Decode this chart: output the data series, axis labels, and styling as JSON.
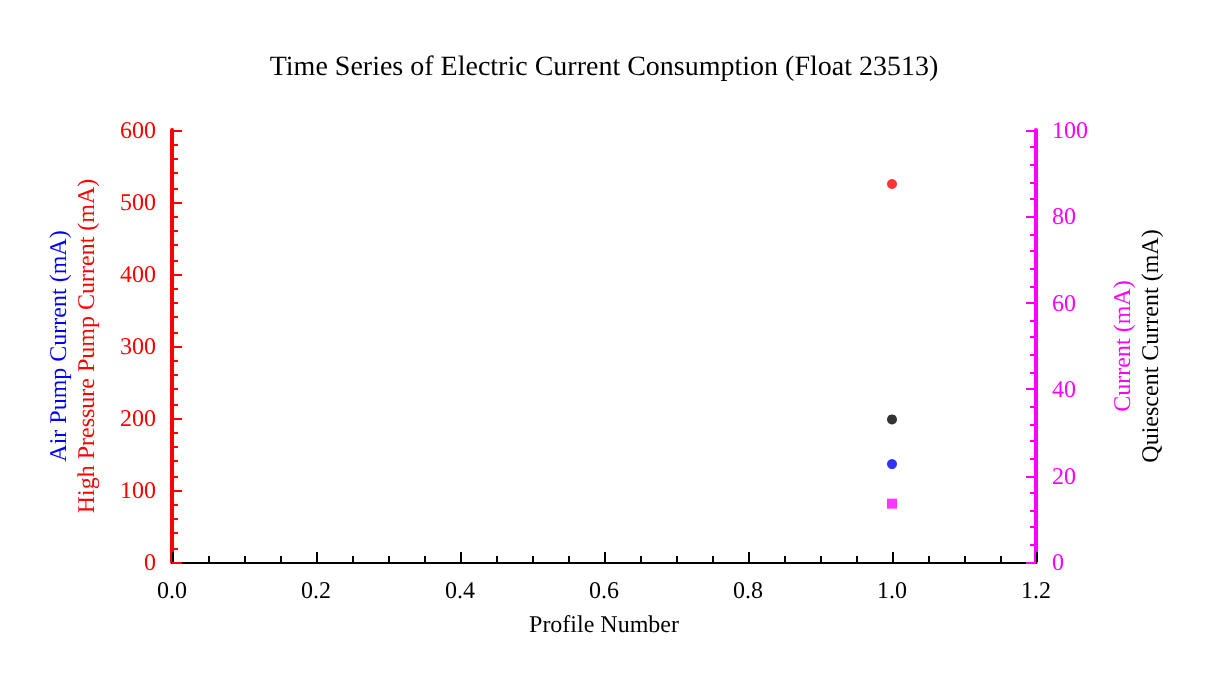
{
  "chart_data": {
    "type": "scatter",
    "title": "Time Series of Electric Current Consumption (Float 23513)",
    "xlabel": "Profile Number",
    "x": [
      1
    ],
    "series": [
      {
        "name": "Air Pump Current (mA)",
        "color": "#0000ff",
        "values": [
          136
        ],
        "marker": "circle"
      },
      {
        "name": "High Pressure Pump Current (mA)",
        "color": "#ff0000",
        "values": [
          525
        ],
        "marker": "circle"
      },
      {
        "name": "Current (mA)",
        "color": "#ff00ff",
        "values": [
          13.5
        ],
        "axis": "y2",
        "marker": "square"
      },
      {
        "name": "Quiescent Current (mA)",
        "color": "#000000",
        "values": [
          33
        ],
        "axis": "y2",
        "marker": "circle"
      }
    ],
    "xlim": [
      0,
      1.2
    ],
    "xticks": [
      {
        "value": 0,
        "label": "0.0"
      },
      {
        "value": 0.2,
        "label": "0.2"
      },
      {
        "value": 0.4,
        "label": "0.4"
      },
      {
        "value": 0.6,
        "label": "0.6"
      },
      {
        "value": 0.8,
        "label": "0.8"
      },
      {
        "value": 1,
        "label": "1.0"
      },
      {
        "value": 1.2,
        "label": "1.2"
      }
    ],
    "ylim": [
      0,
      600
    ],
    "yticks": [
      0,
      100,
      200,
      300,
      400,
      500,
      600
    ],
    "y2lim": [
      0,
      100
    ],
    "y2ticks": [
      0,
      20,
      40,
      60,
      80,
      100
    ],
    "grid": false,
    "legend": false
  }
}
